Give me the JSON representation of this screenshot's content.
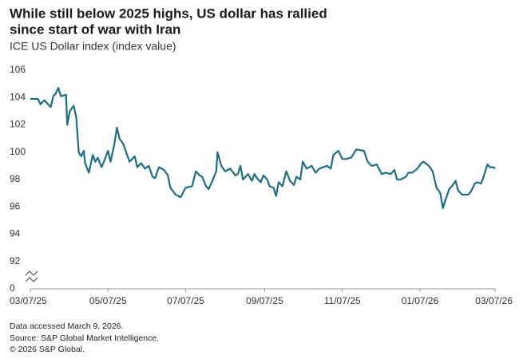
{
  "chart_data": {
    "type": "line",
    "title": [
      "While still below 2025 highs, US dollar has rallied",
      "since start of war with Iran"
    ],
    "subtitle": "ICE US Dollar index (index value)",
    "notes": [
      "Data accessed March 9, 2026.",
      "Source: S&P Global Market Intelligence.",
      "© 2026 S&P Global."
    ],
    "axis_break": true,
    "grid": false,
    "ylim": [
      92,
      106
    ],
    "yticks": [
      0,
      92,
      94,
      96,
      98,
      100,
      102,
      104,
      106
    ],
    "xlim": [
      "2025-03-07",
      "2026-03-07"
    ],
    "xticks": [
      {
        "value": "2025-03-07",
        "label": "03/07/25"
      },
      {
        "value": "2025-05-07",
        "label": "05/07/25"
      },
      {
        "value": "2025-07-07",
        "label": "07/07/25"
      },
      {
        "value": "2025-09-07",
        "label": "09/07/25"
      },
      {
        "value": "2025-11-07",
        "label": "11/07/25"
      },
      {
        "value": "2026-01-07",
        "label": "01/07/26"
      },
      {
        "value": "2026-03-07",
        "label": "03/07/26"
      }
    ],
    "x": [
      "2025-03-07",
      "2025-03-13",
      "2025-03-15",
      "2025-03-18",
      "2025-03-23",
      "2025-03-25",
      "2025-03-27",
      "2025-03-29",
      "2025-03-31",
      "2025-04-04",
      "2025-04-05",
      "2025-04-07",
      "2025-04-10",
      "2025-04-12",
      "2025-04-14",
      "2025-04-16",
      "2025-04-18",
      "2025-04-19",
      "2025-04-22",
      "2025-04-25",
      "2025-04-27",
      "2025-04-29",
      "2025-05-02",
      "2025-05-05",
      "2025-05-07",
      "2025-05-09",
      "2025-05-12",
      "2025-05-14",
      "2025-05-16",
      "2025-05-19",
      "2025-05-22",
      "2025-05-24",
      "2025-05-28",
      "2025-05-30",
      "2025-06-02",
      "2025-06-05",
      "2025-06-08",
      "2025-06-11",
      "2025-06-13",
      "2025-06-16",
      "2025-06-20",
      "2025-06-23",
      "2025-06-25",
      "2025-06-29",
      "2025-07-03",
      "2025-07-07",
      "2025-07-12",
      "2025-07-15",
      "2025-07-18",
      "2025-07-20",
      "2025-07-23",
      "2025-07-25",
      "2025-07-28",
      "2025-07-31",
      "2025-08-01",
      "2025-08-04",
      "2025-08-07",
      "2025-08-11",
      "2025-08-15",
      "2025-08-17",
      "2025-08-19",
      "2025-08-21",
      "2025-08-25",
      "2025-08-28",
      "2025-08-30",
      "2025-09-01",
      "2025-09-04",
      "2025-09-06",
      "2025-09-09",
      "2025-09-11",
      "2025-09-14",
      "2025-09-16",
      "2025-09-18",
      "2025-09-21",
      "2025-09-24",
      "2025-09-27",
      "2025-09-30",
      "2025-10-02",
      "2025-10-05",
      "2025-10-07",
      "2025-10-10",
      "2025-10-14",
      "2025-10-17",
      "2025-10-20",
      "2025-10-23",
      "2025-10-26",
      "2025-10-29",
      "2025-10-31",
      "2025-11-04",
      "2025-11-07",
      "2025-11-10",
      "2025-11-14",
      "2025-11-18",
      "2025-11-24",
      "2025-11-27",
      "2025-11-30",
      "2025-12-04",
      "2025-12-08",
      "2025-12-11",
      "2025-12-15",
      "2025-12-18",
      "2025-12-20",
      "2025-12-23",
      "2025-12-27",
      "2025-12-29",
      "2026-01-01",
      "2026-01-05",
      "2026-01-08",
      "2026-01-10",
      "2026-01-14",
      "2026-01-17",
      "2026-01-20",
      "2026-01-23",
      "2026-01-25",
      "2026-01-27",
      "2026-01-30",
      "2026-02-01",
      "2026-02-04",
      "2026-02-06",
      "2026-02-09",
      "2026-02-14",
      "2026-02-16",
      "2026-02-19",
      "2026-02-21",
      "2026-02-24",
      "2026-02-26",
      "2026-03-01",
      "2026-03-03",
      "2026-03-06",
      "2026-03-07"
    ],
    "series": [
      {
        "name": "ICE US Dollar index",
        "color": "#1d6e83",
        "values": [
          103.9,
          103.9,
          103.5,
          103.8,
          103.3,
          104.1,
          104.3,
          104.7,
          104.1,
          104.2,
          102.0,
          103.0,
          103.4,
          102.6,
          100.0,
          99.7,
          100.1,
          99.2,
          98.5,
          99.8,
          99.3,
          99.6,
          98.9,
          99.6,
          100.1,
          99.3,
          100.6,
          101.8,
          101.0,
          100.6,
          99.8,
          99.3,
          99.7,
          98.9,
          99.2,
          98.8,
          99.0,
          98.2,
          98.1,
          98.9,
          98.7,
          98.3,
          97.4,
          96.9,
          96.7,
          97.4,
          97.5,
          98.6,
          98.3,
          98.2,
          97.5,
          97.3,
          97.9,
          98.6,
          100.0,
          99.0,
          98.6,
          98.8,
          98.3,
          98.4,
          99.0,
          98.0,
          98.4,
          97.9,
          98.4,
          98.1,
          97.8,
          98.3,
          98.0,
          97.5,
          97.4,
          96.8,
          97.8,
          97.5,
          98.6,
          97.9,
          97.6,
          98.2,
          98.0,
          99.3,
          98.8,
          99.0,
          98.5,
          98.8,
          98.9,
          99.0,
          98.8,
          99.8,
          100.1,
          99.5,
          99.5,
          99.6,
          100.2,
          100.1,
          99.3,
          99.0,
          99.1,
          98.4,
          98.5,
          98.4,
          98.7,
          98.0,
          98.0,
          98.2,
          98.5,
          98.5,
          98.8,
          99.2,
          99.3,
          99.0,
          98.6,
          97.4,
          97.0,
          95.9,
          96.5,
          97.3,
          97.5,
          97.9,
          97.2,
          96.9,
          96.9,
          97.1,
          97.7,
          97.8,
          97.7,
          98.2,
          99.1,
          98.9,
          98.9,
          98.8
        ]
      }
    ]
  }
}
